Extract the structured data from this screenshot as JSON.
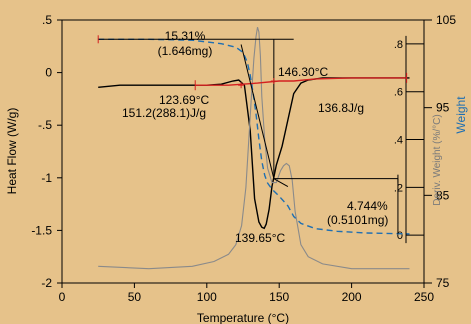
{
  "chart_data": {
    "type": "line",
    "title": "",
    "xlabel": "Temperature (°C)",
    "ylabel": "Heat Flow (W/g)",
    "y2label": "Deriv. Weight (%/°C)",
    "y3label": "Weight",
    "xlim": [
      0,
      250
    ],
    "ylim": [
      -2,
      0.5
    ],
    "y2lim": [
      -0.2,
      0.9
    ],
    "y3lim": [
      75,
      105
    ],
    "xticks": [
      0,
      50,
      100,
      150,
      200,
      250
    ],
    "yticks": [
      0.5,
      0,
      -0.5,
      -1,
      -1.5,
      -2
    ],
    "ytick_labels": [
      ".5",
      "0",
      "-.5",
      "-1",
      "-1.5",
      "-2"
    ],
    "y2ticks": [
      0,
      0.2,
      0.4,
      0.6,
      0.8
    ],
    "y2tick_labels": [
      "0",
      ".2",
      ".4",
      ".6",
      ".8"
    ],
    "y3ticks": [
      75,
      85,
      95,
      105
    ],
    "series": [
      {
        "axis": "heatflow",
        "color": "#000000",
        "dash": "solid",
        "x": [
          25,
          40,
          60,
          80,
          100,
          110,
          118,
          122,
          126,
          130,
          133,
          136,
          138,
          139.65,
          141,
          143,
          145,
          148,
          152,
          156,
          160,
          165,
          170,
          180,
          200,
          220,
          240
        ],
        "y": [
          -0.14,
          -0.12,
          -0.12,
          -0.12,
          -0.12,
          -0.11,
          -0.08,
          -0.07,
          -0.12,
          -0.55,
          -1.2,
          -1.42,
          -1.47,
          -1.48,
          -1.44,
          -1.3,
          -1.08,
          -0.88,
          -0.7,
          -0.45,
          -0.2,
          -0.1,
          -0.07,
          -0.05,
          -0.05,
          -0.05,
          -0.05
        ]
      },
      {
        "axis": "deriv",
        "color": "#8a8a8a",
        "dash": "solid",
        "x": [
          25,
          60,
          90,
          105,
          115,
          120,
          124,
          127,
          129,
          131,
          132.5,
          134,
          135,
          136,
          137,
          138,
          140,
          142,
          145,
          148,
          151,
          153,
          155,
          157,
          159,
          161,
          165,
          170,
          180,
          200,
          240
        ],
        "y": [
          -0.13,
          -0.14,
          -0.13,
          -0.11,
          -0.08,
          -0.04,
          0.04,
          0.2,
          0.4,
          0.6,
          0.74,
          0.83,
          0.87,
          0.85,
          0.75,
          0.58,
          0.4,
          0.28,
          0.22,
          0.22,
          0.27,
          0.29,
          0.3,
          0.29,
          0.23,
          0.1,
          -0.04,
          -0.09,
          -0.12,
          -0.14,
          -0.14
        ]
      },
      {
        "axis": "weight",
        "color": "#1f6fb2",
        "dash": "dashed",
        "x": [
          25,
          60,
          90,
          110,
          120,
          125,
          128,
          130,
          132,
          134,
          136,
          138,
          140,
          142,
          145,
          150,
          156,
          160,
          165,
          175,
          190,
          210,
          240
        ],
        "y": [
          102.8,
          102.8,
          102.7,
          102.3,
          101.9,
          101.3,
          100.2,
          98.7,
          96.7,
          94.3,
          91.4,
          88.9,
          87.3,
          86.4,
          85.7,
          84.9,
          83.8,
          82.6,
          81.8,
          81.2,
          80.9,
          80.7,
          80.6
        ]
      },
      {
        "axis": "heatflow",
        "color": "#d42020",
        "dash": "solid",
        "x": [
          92,
          115,
          135,
          150,
          160,
          175,
          200,
          238
        ],
        "y": [
          -0.12,
          -0.12,
          -0.1,
          -0.08,
          -0.08,
          -0.06,
          -0.05,
          -0.05
        ]
      }
    ],
    "annotations": {
      "weight_loss_1": {
        "line1": "15.31%",
        "line2": "(1.646mg)"
      },
      "peak_onset": "146.30°C",
      "enthalpy_onset": "123.69°C",
      "enthalpy_value": "151.2(288.1)J/g",
      "enthalpy_right": "136.8J/g",
      "peak_temp": "139.65°C",
      "weight_loss_2": {
        "line1": "4.744%",
        "line2": "(0.5101mg)"
      }
    }
  }
}
